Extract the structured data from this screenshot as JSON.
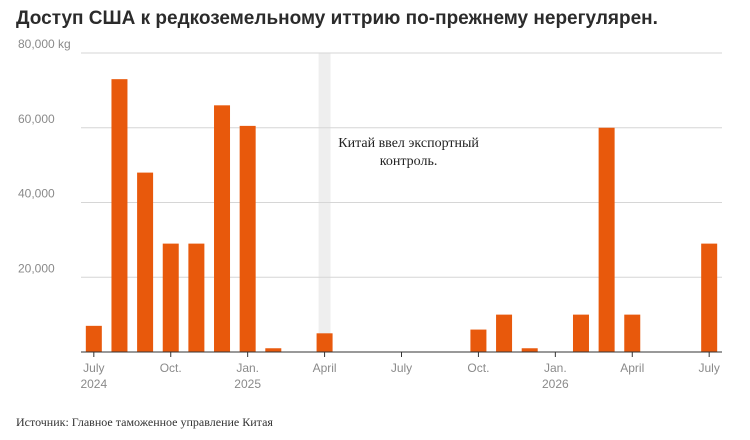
{
  "title": "Доступ США к редкоземельному иттрию по-прежнему нерегулярен.",
  "source": "Источник: Главное таможенное управление Китая",
  "colors": {
    "bar": "#e8590c",
    "grid": "#d6d6d6",
    "axis": "#333333",
    "shade": "#eeeeee"
  },
  "chart_data": {
    "type": "bar",
    "title": "Доступ США к редкоземельному иттрию по-прежнему нерегулярен.",
    "unit": "kg",
    "categories": [
      "2024-07",
      "2024-08",
      "2024-09",
      "2024-10",
      "2024-11",
      "2024-12",
      "2025-01",
      "2025-02",
      "2025-03",
      "2025-04",
      "2025-05",
      "2025-06",
      "2025-07",
      "2025-08",
      "2025-09",
      "2025-10",
      "2025-11",
      "2025-12",
      "2026-01",
      "2026-02",
      "2026-03",
      "2026-04",
      "2026-05",
      "2026-06",
      "2026-07"
    ],
    "values": [
      7000,
      73000,
      48000,
      29000,
      29000,
      66000,
      60500,
      1000,
      0,
      5000,
      0,
      0,
      0,
      0,
      0,
      6000,
      10000,
      1000,
      0,
      10000,
      60000,
      10000,
      0,
      0,
      29000
    ],
    "ylim": [
      0,
      80000
    ],
    "yticks": [
      {
        "value": 20000,
        "label": "20,000"
      },
      {
        "value": 40000,
        "label": "40,000"
      },
      {
        "value": 60000,
        "label": "60,000"
      },
      {
        "value": 80000,
        "label": "80,000 kg"
      }
    ],
    "xticks": [
      {
        "category": "2024-07",
        "label": "July",
        "year": "2024"
      },
      {
        "category": "2024-10",
        "label": "Oct.",
        "year": ""
      },
      {
        "category": "2025-01",
        "label": "Jan.",
        "year": "2025"
      },
      {
        "category": "2025-04",
        "label": "April",
        "year": ""
      },
      {
        "category": "2025-07",
        "label": "July",
        "year": ""
      },
      {
        "category": "2025-10",
        "label": "Oct.",
        "year": ""
      },
      {
        "category": "2026-01",
        "label": "Jan.",
        "year": "2026"
      },
      {
        "category": "2026-04",
        "label": "April",
        "year": ""
      },
      {
        "category": "2026-07",
        "label": "July",
        "year": ""
      }
    ],
    "highlight": {
      "category": "2025-04",
      "annotation": [
        "Китай ввел экспортный",
        "контроль."
      ]
    },
    "grid": true,
    "legend": "none"
  }
}
